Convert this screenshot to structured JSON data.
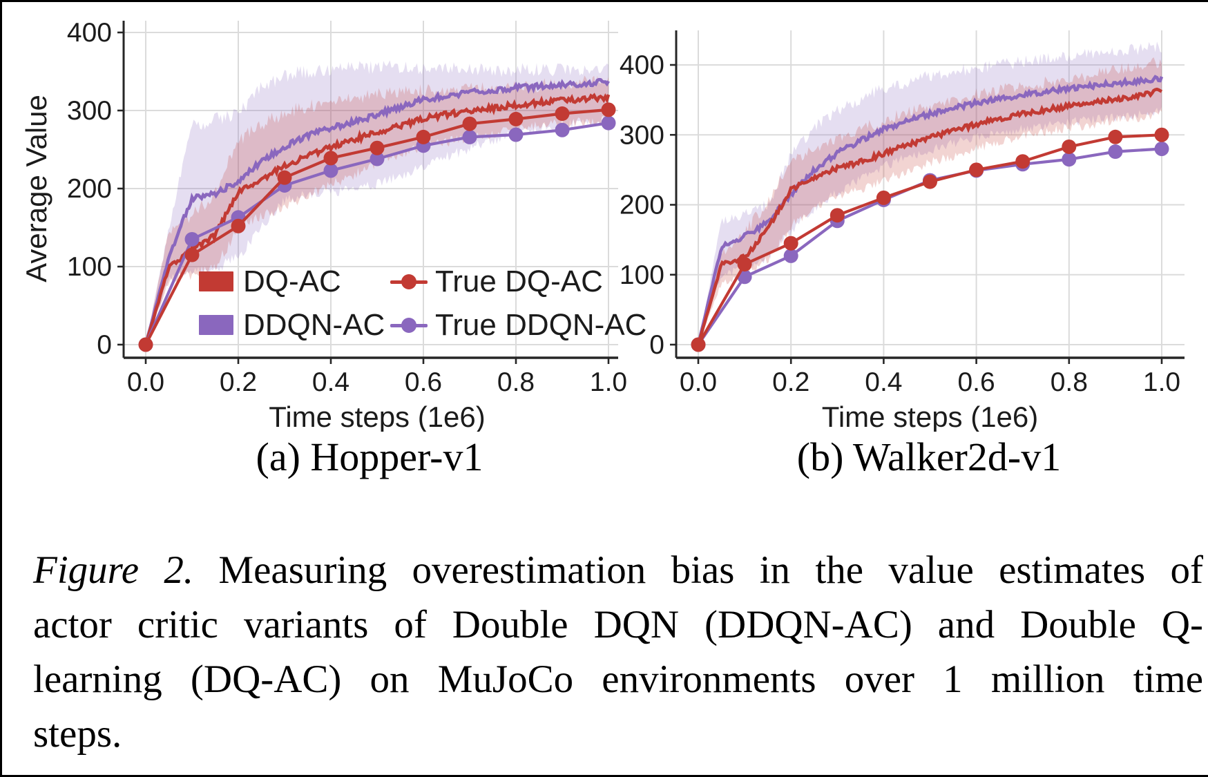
{
  "colors": {
    "red": "#C23A33",
    "purple": "#8A67BE",
    "grid": "#DBDBDB",
    "spine": "#262626",
    "text": "#1b1b1b"
  },
  "legend": {
    "items": [
      {
        "label": "DQ-AC",
        "symbol": "patch",
        "color": "red"
      },
      {
        "label": "DDQN-AC",
        "symbol": "patch",
        "color": "purple"
      },
      {
        "label": "True DQ-AC",
        "symbol": "marker-line",
        "color": "red"
      },
      {
        "label": "True DDQN-AC",
        "symbol": "marker-line",
        "color": "purple"
      }
    ]
  },
  "figure": {
    "subcaptions": {
      "a": "(a) Hopper-v1",
      "b": "(b) Walker2d-v1"
    },
    "caption": {
      "prefix": "Figure 2.",
      "line1_rest": "Measuring overestimation bias in the value estimates of",
      "line2": "actor critic variants of Double DQN (DDQN-AC) and Double Q-",
      "line3": "learning (DQ-AC) on MuJoCo environments over 1 million time",
      "line4": "steps."
    }
  },
  "chart_data": [
    {
      "type": "line",
      "title": "(a) Hopper-v1",
      "xlabel": "Time steps (1e6)",
      "ylabel": "Average Value",
      "x_tick_labels": [
        "0.0",
        "0.2",
        "0.4",
        "0.6",
        "0.8",
        "1.0"
      ],
      "y_ticks": [
        0,
        100,
        200,
        300,
        400
      ],
      "xlim": [
        -0.048,
        1.021
      ],
      "ylim": [
        -17,
        415
      ],
      "grid": true,
      "legend_position": "lower center (left plot only)",
      "series": [
        {
          "name": "DDQN-AC",
          "kind": "band",
          "color": "purple",
          "x": [
            0,
            0.05,
            0.1,
            0.15,
            0.2,
            0.25,
            0.3,
            0.35,
            0.4,
            0.45,
            0.5,
            0.55,
            0.6,
            0.65,
            0.7,
            0.75,
            0.8,
            0.85,
            0.9,
            0.95,
            1.0
          ],
          "mean": [
            0,
            112,
            188,
            193,
            210,
            235,
            254,
            268,
            277,
            286,
            294,
            305,
            314,
            319,
            323,
            326,
            329,
            331,
            333,
            335,
            337
          ],
          "lower": [
            0,
            86,
            92,
            97,
            112,
            150,
            185,
            192,
            196,
            200,
            206,
            216,
            228,
            240,
            252,
            262,
            270,
            277,
            282,
            285,
            288
          ],
          "upper": [
            0,
            150,
            280,
            288,
            296,
            330,
            345,
            350,
            353,
            355,
            356,
            355,
            354,
            353,
            353,
            352,
            352,
            352,
            353,
            354,
            355
          ]
        },
        {
          "name": "DQ-AC",
          "kind": "band",
          "color": "red",
          "x": [
            0,
            0.05,
            0.1,
            0.15,
            0.2,
            0.25,
            0.3,
            0.35,
            0.4,
            0.45,
            0.5,
            0.55,
            0.6,
            0.65,
            0.7,
            0.75,
            0.8,
            0.85,
            0.9,
            0.95,
            1.0
          ],
          "mean": [
            0,
            100,
            122,
            140,
            196,
            212,
            229,
            242,
            253,
            263,
            272,
            280,
            290,
            295,
            299,
            303,
            307,
            310,
            313,
            315,
            317
          ],
          "lower": [
            0,
            82,
            90,
            100,
            148,
            165,
            176,
            190,
            205,
            218,
            232,
            245,
            255,
            260,
            265,
            270,
            275,
            280,
            283,
            285,
            287
          ],
          "upper": [
            0,
            146,
            164,
            196,
            260,
            282,
            297,
            305,
            310,
            315,
            320,
            322,
            325,
            327,
            328,
            330,
            331,
            332,
            334,
            336,
            340
          ]
        },
        {
          "name": "True DDQN-AC",
          "kind": "markers",
          "color": "purple",
          "x": [
            0,
            0.1,
            0.2,
            0.3,
            0.4,
            0.5,
            0.6,
            0.7,
            0.8,
            0.9,
            1.0
          ],
          "values": [
            0,
            135,
            163,
            204,
            223,
            238,
            255,
            266,
            269,
            275,
            284
          ]
        },
        {
          "name": "True DQ-AC",
          "kind": "markers",
          "color": "red",
          "x": [
            0,
            0.1,
            0.2,
            0.3,
            0.4,
            0.5,
            0.6,
            0.7,
            0.8,
            0.9,
            1.0
          ],
          "values": [
            0,
            115,
            152,
            214,
            239,
            252,
            266,
            283,
            289,
            296,
            301
          ]
        }
      ]
    },
    {
      "type": "line",
      "title": "(b) Walker2d-v1",
      "xlabel": "Time steps (1e6)",
      "ylabel": "",
      "x_tick_labels": [
        "0.0",
        "0.2",
        "0.4",
        "0.6",
        "0.8",
        "1.0"
      ],
      "y_ticks": [
        0,
        100,
        200,
        300,
        400
      ],
      "xlim": [
        -0.048,
        1.049
      ],
      "ylim": [
        -19,
        450
      ],
      "grid": true,
      "legend_position": "none",
      "series": [
        {
          "name": "DDQN-AC",
          "kind": "band",
          "color": "purple",
          "x": [
            0,
            0.05,
            0.1,
            0.15,
            0.2,
            0.25,
            0.3,
            0.35,
            0.4,
            0.45,
            0.5,
            0.55,
            0.6,
            0.65,
            0.7,
            0.75,
            0.8,
            0.85,
            0.9,
            0.95,
            1.0
          ],
          "mean": [
            0,
            140,
            155,
            175,
            215,
            250,
            274,
            292,
            308,
            320,
            330,
            338,
            346,
            352,
            357,
            362,
            366,
            370,
            374,
            377,
            381
          ],
          "lower": [
            0,
            100,
            108,
            125,
            160,
            195,
            218,
            238,
            255,
            268,
            278,
            288,
            296,
            302,
            308,
            313,
            318,
            322,
            326,
            330,
            335
          ],
          "upper": [
            0,
            176,
            186,
            200,
            270,
            310,
            335,
            352,
            366,
            376,
            384,
            390,
            396,
            400,
            404,
            408,
            412,
            416,
            420,
            423,
            426
          ]
        },
        {
          "name": "DQ-AC",
          "kind": "band",
          "color": "red",
          "x": [
            0,
            0.05,
            0.1,
            0.15,
            0.2,
            0.25,
            0.3,
            0.35,
            0.4,
            0.45,
            0.5,
            0.55,
            0.6,
            0.65,
            0.7,
            0.75,
            0.8,
            0.85,
            0.9,
            0.95,
            1.0
          ],
          "mean": [
            0,
            115,
            125,
            165,
            222,
            240,
            252,
            262,
            273,
            285,
            296,
            306,
            315,
            323,
            330,
            336,
            341,
            346,
            351,
            356,
            363
          ],
          "lower": [
            0,
            88,
            100,
            120,
            170,
            195,
            210,
            222,
            235,
            248,
            260,
            270,
            280,
            290,
            298,
            305,
            310,
            315,
            320,
            325,
            331
          ],
          "upper": [
            0,
            130,
            160,
            205,
            264,
            280,
            295,
            308,
            320,
            332,
            342,
            350,
            358,
            364,
            370,
            375,
            380,
            386,
            392,
            398,
            405
          ]
        },
        {
          "name": "True DDQN-AC",
          "kind": "markers",
          "color": "purple",
          "x": [
            0,
            0.1,
            0.2,
            0.3,
            0.4,
            0.5,
            0.6,
            0.7,
            0.8,
            0.9,
            1.0
          ],
          "values": [
            0,
            97,
            127,
            177,
            207,
            235,
            249,
            258,
            265,
            276,
            280
          ]
        },
        {
          "name": "True DQ-AC",
          "kind": "markers",
          "color": "red",
          "x": [
            0,
            0.1,
            0.2,
            0.3,
            0.4,
            0.5,
            0.6,
            0.7,
            0.8,
            0.9,
            1.0
          ],
          "values": [
            0,
            115,
            145,
            185,
            210,
            233,
            250,
            262,
            283,
            297,
            300
          ]
        }
      ]
    }
  ]
}
